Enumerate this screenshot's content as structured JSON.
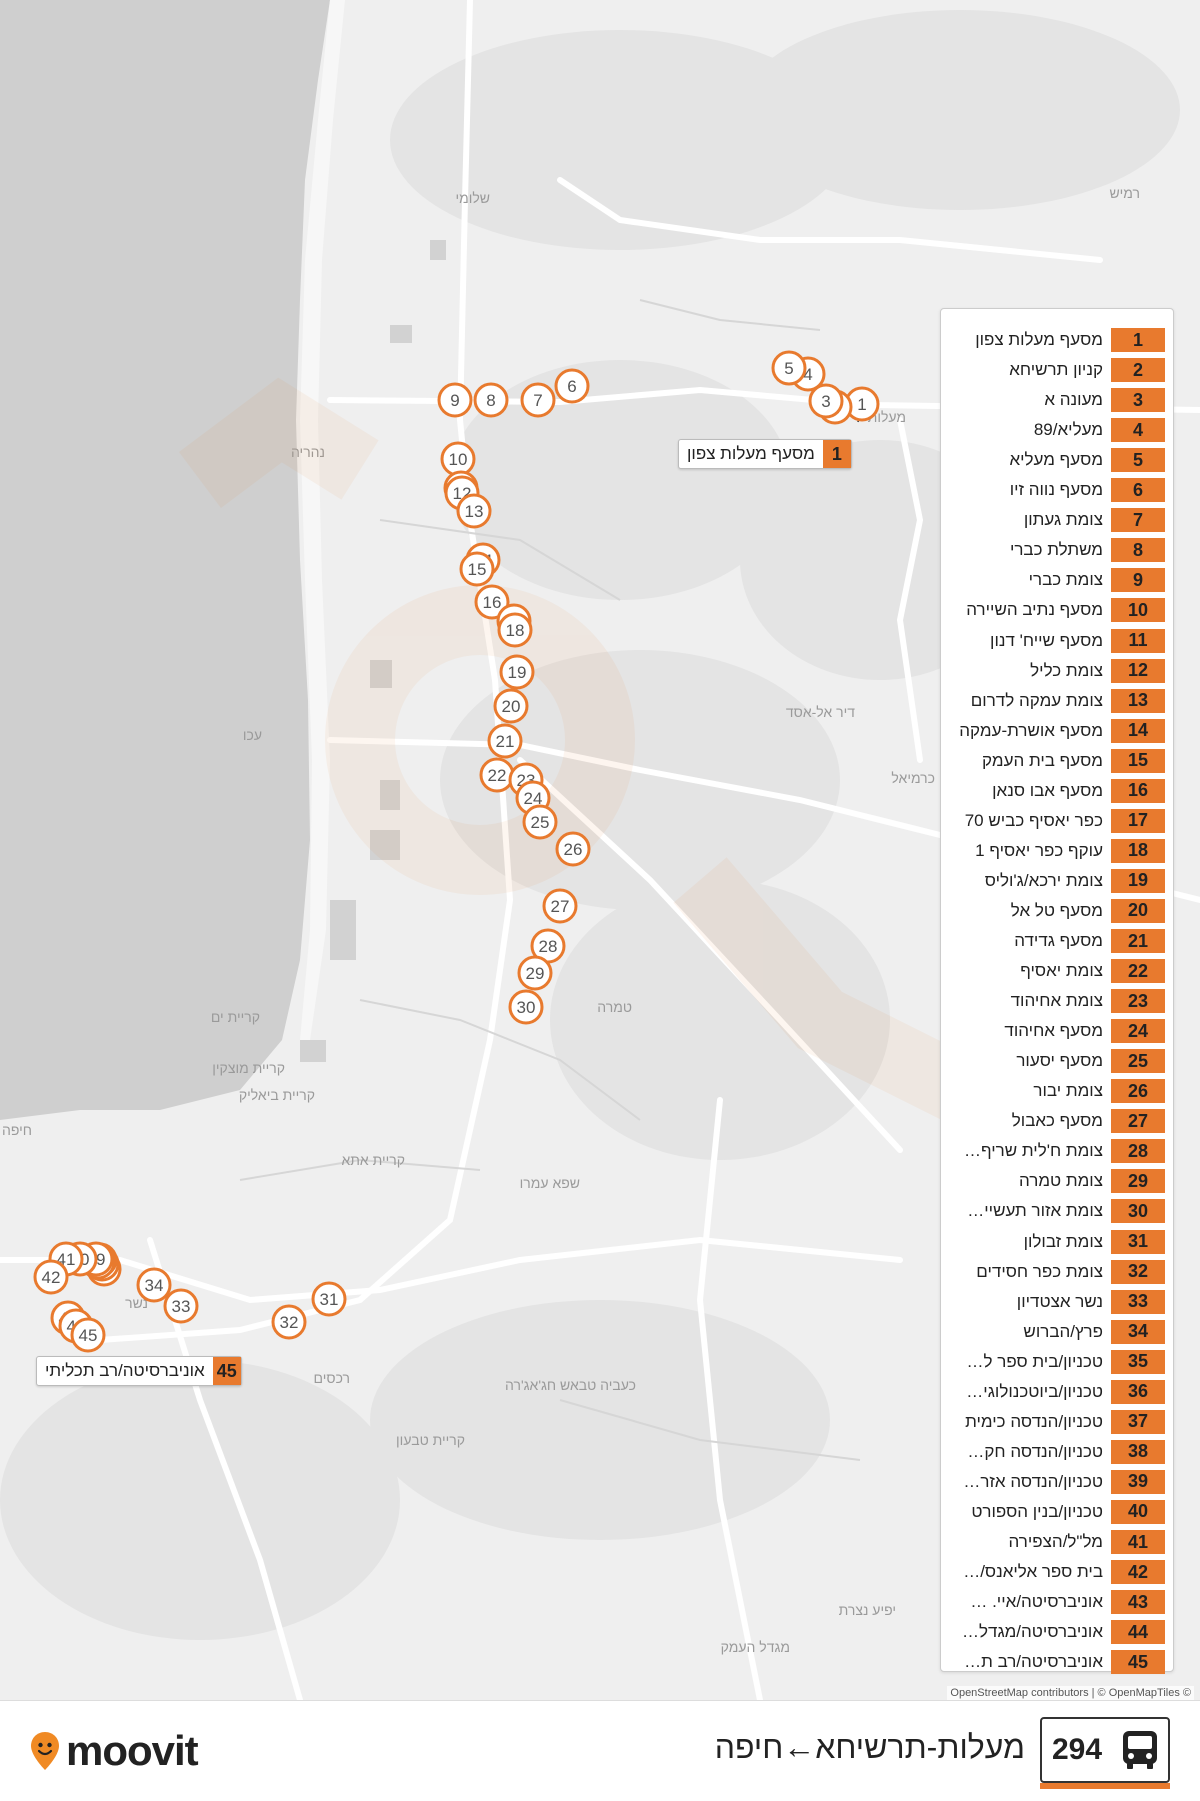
{
  "map": {
    "accent_color": "#e87a2e",
    "water_color": "#cfcfcf",
    "place_labels": [
      "רמיש",
      "שלומי",
      "נהריה",
      "עכו",
      "כרמיאל",
      "דיר אל-אסד",
      "קריית ים",
      "קריית מוצקין",
      "קריית ביאליק",
      "קריית אתא",
      "שפא עמרו",
      "טמרה",
      "נשר",
      "רכסים",
      "כעביה טבאש חג'אג'רה",
      "קריית טבעון",
      "יפיע נצרת",
      "מגדל העמק",
      "חיפה",
      "מעלות"
    ],
    "markers": [
      "1",
      "2",
      "3",
      "4",
      "5",
      "6",
      "7",
      "8",
      "9",
      "10",
      "11",
      "12",
      "13",
      "14",
      "15",
      "16",
      "17",
      "18",
      "19",
      "20",
      "21",
      "22",
      "23",
      "24",
      "25",
      "26",
      "27",
      "28",
      "29",
      "30",
      "31",
      "32",
      "33",
      "34",
      "35",
      "36",
      "37",
      "38",
      "39",
      "40",
      "41",
      "42",
      "43",
      "44",
      "45"
    ],
    "callout_first": {
      "num": "1",
      "label": "מסעף מעלות צפון"
    },
    "callout_last": {
      "num": "45",
      "label": "אוניברסיטה/רב תכליתי"
    }
  },
  "legend": [
    {
      "num": "1",
      "name": "מסעף מעלות צפון"
    },
    {
      "num": "2",
      "name": "קניון תרשיחא"
    },
    {
      "num": "3",
      "name": "מעונה א"
    },
    {
      "num": "4",
      "name": "מעליא/89"
    },
    {
      "num": "5",
      "name": "מסעף מעליא"
    },
    {
      "num": "6",
      "name": "מסעף נווה זיו"
    },
    {
      "num": "7",
      "name": "צומת געתון"
    },
    {
      "num": "8",
      "name": "משתלת כברי"
    },
    {
      "num": "9",
      "name": "צומת כברי"
    },
    {
      "num": "10",
      "name": "מסעף נתיב השיירה"
    },
    {
      "num": "11",
      "name": "מסעף שייח' דנון"
    },
    {
      "num": "12",
      "name": "צומת כליל"
    },
    {
      "num": "13",
      "name": "צומת עמקה לדרום"
    },
    {
      "num": "14",
      "name": "מסעף אושרת-עמקה"
    },
    {
      "num": "15",
      "name": "מסעף בית העמק"
    },
    {
      "num": "16",
      "name": "מסעף אבו סנאן"
    },
    {
      "num": "17",
      "name": "כפר יאסיף כביש 70"
    },
    {
      "num": "18",
      "name": "עוקף כפר יאסיף 1"
    },
    {
      "num": "19",
      "name": "צומת ירכא/ג'וליס"
    },
    {
      "num": "20",
      "name": "מסעף טל אל"
    },
    {
      "num": "21",
      "name": "מסעף גדידה"
    },
    {
      "num": "22",
      "name": "צומת יאסיף"
    },
    {
      "num": "23",
      "name": "צומת אחיהוד"
    },
    {
      "num": "24",
      "name": "מסעף אחיהוד"
    },
    {
      "num": "25",
      "name": "מסעף יסעור"
    },
    {
      "num": "26",
      "name": "צומת יבור"
    },
    {
      "num": "27",
      "name": "מסעף כאבול"
    },
    {
      "num": "28",
      "name": "צומת ח'לית שריף…"
    },
    {
      "num": "29",
      "name": "צומת טמרה"
    },
    {
      "num": "30",
      "name": "צומת אזור תעשיי…"
    },
    {
      "num": "31",
      "name": "צומת זבולון"
    },
    {
      "num": "32",
      "name": "צומת כפר חסידים"
    },
    {
      "num": "33",
      "name": "נשר אצטדיון"
    },
    {
      "num": "34",
      "name": "פרץ/הברוש"
    },
    {
      "num": "35",
      "name": "טכניון/בית ספר ל…"
    },
    {
      "num": "36",
      "name": "טכניון/ביוטכנולוגי…"
    },
    {
      "num": "37",
      "name": "טכניון/הנדסה כימית"
    },
    {
      "num": "38",
      "name": "טכניון/הנדסה חק…"
    },
    {
      "num": "39",
      "name": "טכניון/הנדסה אזר…"
    },
    {
      "num": "40",
      "name": "טכניון/בנין הספורט"
    },
    {
      "num": "41",
      "name": "מל\"ל/הצפירה"
    },
    {
      "num": "42",
      "name": "בית ספר אליאנס/…"
    },
    {
      "num": "43",
      "name": "אוניברסיטה/איי. …"
    },
    {
      "num": "44",
      "name": "אוניברסיטה/מגדל…"
    },
    {
      "num": "45",
      "name": "אוניברסיטה/רב ת…"
    }
  ],
  "attribution": "OpenStreetMap contributors | © OpenMapTiles ©",
  "footer": {
    "logo_text": "moovit",
    "route_number": "294",
    "route_title": "מעלות-תרשיחא←חיפה",
    "bus_icon": "bus-icon",
    "logo_icon": "moovit-pin-icon"
  }
}
